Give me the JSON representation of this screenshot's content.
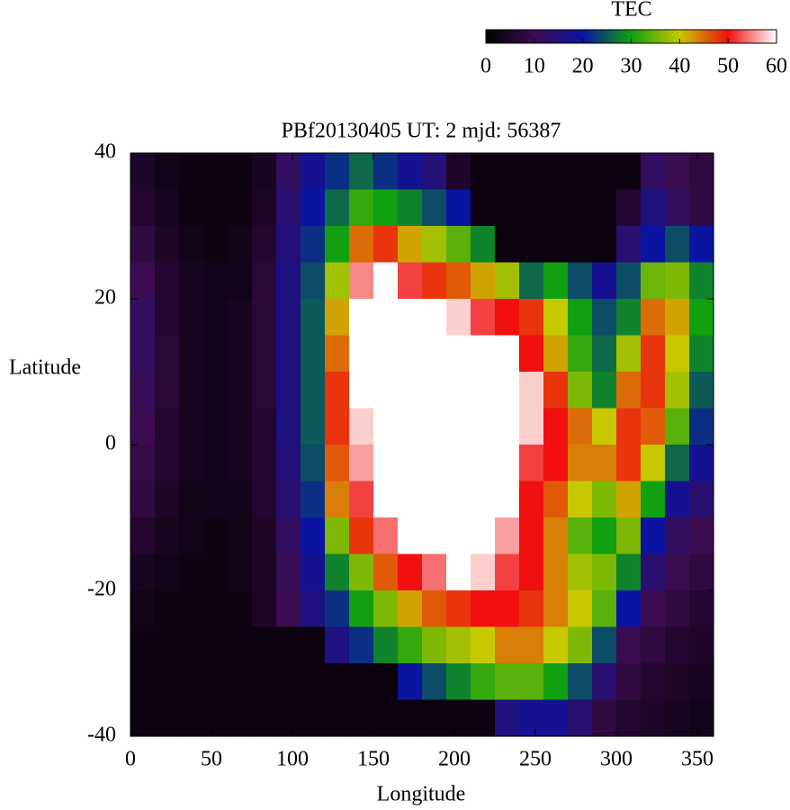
{
  "chart_data": {
    "type": "heatmap",
    "title": "PBf20130405  UT: 2  mjd: 56387",
    "x_label": "Longitude",
    "y_label": "Latitude",
    "xlim": [
      0,
      360
    ],
    "xticks": [
      0,
      50,
      100,
      150,
      200,
      250,
      300,
      350
    ],
    "ylim": [
      -40,
      40
    ],
    "yticks": [
      -40,
      -20,
      0,
      20,
      40
    ],
    "colormap": [
      "#000000",
      "#3c0c50",
      "#0a14a0",
      "#10a010",
      "#c8c800",
      "#f01010",
      "#ffffff"
    ],
    "colorbar": {
      "label": "TEC",
      "lim": [
        0,
        60
      ],
      "ticks": [
        0,
        10,
        20,
        30,
        40,
        50,
        60
      ]
    },
    "z": [
      [
        5,
        3,
        2,
        2,
        2,
        4,
        12,
        18,
        22,
        26,
        22,
        18,
        15,
        5,
        2,
        2,
        2,
        2,
        2,
        2,
        2,
        12,
        10,
        8
      ],
      [
        6,
        4,
        2,
        2,
        2,
        5,
        14,
        20,
        26,
        32,
        30,
        28,
        24,
        20,
        2,
        2,
        2,
        2,
        2,
        2,
        6,
        16,
        12,
        8
      ],
      [
        8,
        5,
        3,
        2,
        3,
        6,
        15,
        22,
        30,
        45,
        48,
        42,
        38,
        34,
        28,
        2,
        2,
        2,
        2,
        2,
        14,
        20,
        24,
        20
      ],
      [
        10,
        6,
        4,
        3,
        3,
        7,
        16,
        24,
        38,
        55,
        60,
        52,
        48,
        46,
        42,
        38,
        26,
        30,
        24,
        18,
        24,
        35,
        36,
        28
      ],
      [
        12,
        6,
        4,
        3,
        4,
        7,
        16,
        25,
        42,
        60,
        60,
        60,
        60,
        58,
        52,
        50,
        48,
        40,
        30,
        24,
        28,
        45,
        42,
        30
      ],
      [
        12,
        7,
        4,
        3,
        4,
        7,
        16,
        25,
        45,
        60,
        60,
        60,
        60,
        60,
        60,
        60,
        50,
        42,
        32,
        26,
        38,
        48,
        40,
        28
      ],
      [
        11,
        7,
        4,
        3,
        4,
        7,
        16,
        25,
        48,
        60,
        60,
        60,
        60,
        60,
        60,
        60,
        58,
        48,
        36,
        28,
        45,
        48,
        38,
        25
      ],
      [
        10,
        6,
        4,
        3,
        4,
        6,
        16,
        25,
        48,
        58,
        60,
        60,
        60,
        60,
        60,
        60,
        58,
        50,
        45,
        40,
        48,
        46,
        34,
        22
      ],
      [
        9,
        6,
        4,
        3,
        4,
        6,
        15,
        24,
        46,
        56,
        60,
        60,
        60,
        60,
        60,
        60,
        52,
        50,
        44,
        44,
        48,
        40,
        26,
        18
      ],
      [
        8,
        5,
        3,
        3,
        3,
        6,
        14,
        22,
        44,
        52,
        60,
        60,
        60,
        60,
        60,
        60,
        50,
        46,
        40,
        36,
        42,
        30,
        18,
        14
      ],
      [
        6,
        4,
        3,
        2,
        3,
        5,
        12,
        20,
        36,
        48,
        54,
        60,
        60,
        60,
        60,
        56,
        50,
        44,
        34,
        30,
        36,
        20,
        12,
        10
      ],
      [
        4,
        3,
        2,
        2,
        3,
        5,
        11,
        18,
        28,
        36,
        46,
        50,
        54,
        60,
        58,
        52,
        50,
        44,
        38,
        36,
        28,
        14,
        10,
        8
      ],
      [
        3,
        2,
        2,
        2,
        2,
        5,
        10,
        16,
        22,
        30,
        36,
        42,
        46,
        48,
        50,
        50,
        48,
        44,
        40,
        34,
        20,
        10,
        8,
        6
      ],
      [
        2,
        2,
        2,
        2,
        2,
        2,
        2,
        2,
        16,
        22,
        28,
        32,
        36,
        38,
        40,
        44,
        44,
        40,
        36,
        24,
        10,
        8,
        6,
        5
      ],
      [
        2,
        2,
        2,
        2,
        2,
        2,
        2,
        2,
        2,
        2,
        2,
        20,
        24,
        28,
        32,
        34,
        34,
        30,
        24,
        14,
        8,
        6,
        5,
        4
      ],
      [
        2,
        2,
        2,
        2,
        2,
        2,
        2,
        2,
        2,
        2,
        2,
        2,
        2,
        2,
        2,
        16,
        18,
        18,
        14,
        8,
        6,
        5,
        4,
        3
      ]
    ]
  }
}
